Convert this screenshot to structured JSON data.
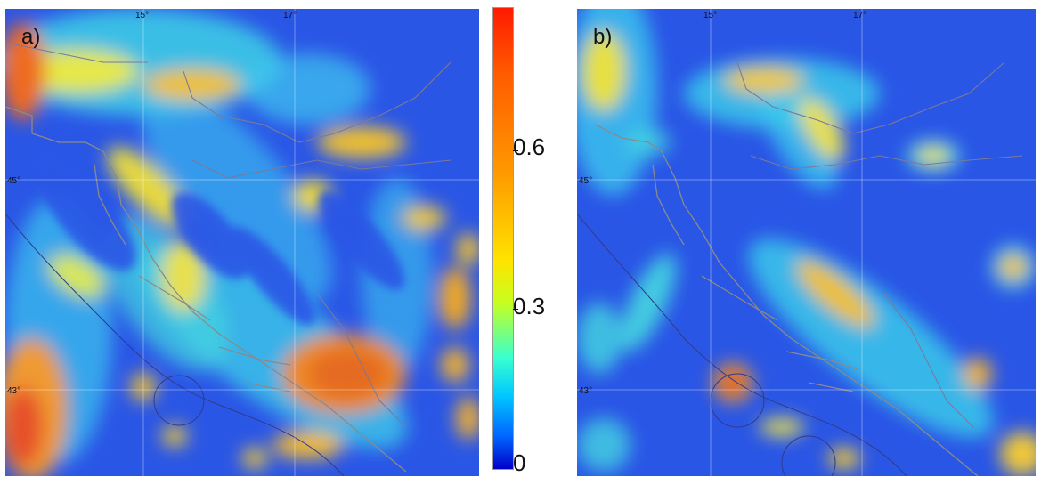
{
  "panels": [
    {
      "label": "a)",
      "lon_labels": [
        "15°",
        "17°"
      ],
      "lat_labels": [
        "45°",
        "43°"
      ]
    },
    {
      "label": "b)",
      "lon_labels": [
        "15°",
        "17°"
      ],
      "lat_labels": [
        "45°",
        "43°"
      ]
    }
  ],
  "colorbar": {
    "ticks": [
      "0.6",
      "0.3",
      "0"
    ],
    "colors": [
      "#0000c8",
      "#0064ff",
      "#00c8ff",
      "#38ffd0",
      "#c6ff20",
      "#ffe400",
      "#ff9a00",
      "#ff5a00",
      "#ff1a00"
    ]
  }
}
